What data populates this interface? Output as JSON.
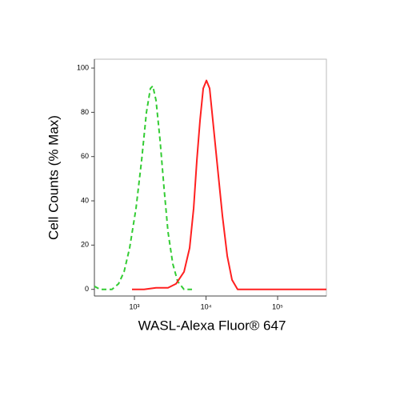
{
  "chart_data": {
    "type": "line",
    "x_label": "WASL-Alexa Fluor® 647",
    "y_label": "Cell Counts (% Max)",
    "x_scale": "log",
    "xlim": [
      276,
      480000
    ],
    "ylim": [
      -3,
      104
    ],
    "xticks": [
      {
        "value": 1000,
        "label": "10³"
      },
      {
        "value": 10000,
        "label": "10⁴"
      },
      {
        "value": 100000,
        "label": "10⁵"
      }
    ],
    "yticks": [
      0,
      20,
      40,
      60,
      80,
      100
    ],
    "series": [
      {
        "color": "#33cc33",
        "dash": true,
        "x": [
          276,
          331,
          486,
          599,
          716,
          857,
          1052,
          1261,
          1472,
          1672,
          1806,
          2003,
          2280,
          2590,
          2946,
          3436,
          4011,
          4927,
          6374
        ],
        "values": [
          1.4,
          0,
          0,
          2.5,
          7.9,
          18.7,
          36.6,
          58.4,
          80,
          90.8,
          91.9,
          85.4,
          67.4,
          45.8,
          25.9,
          11.5,
          3.6,
          0,
          0
        ]
      },
      {
        "color": "#ff2020",
        "dash": false,
        "x": [
          925,
          1362,
          2003,
          2946,
          3810,
          4927,
          5900,
          6714,
          7447,
          8248,
          9141,
          10140,
          11230,
          12450,
          14520,
          16950,
          19780,
          23070,
          27610,
          38600,
          480000
        ],
        "values": [
          0,
          0,
          0.7,
          0.7,
          2.5,
          7.9,
          18.7,
          36.6,
          58.4,
          76.4,
          90.8,
          94.4,
          90.8,
          76.4,
          54.8,
          33.2,
          15.1,
          4.3,
          0,
          0,
          0
        ]
      }
    ]
  }
}
